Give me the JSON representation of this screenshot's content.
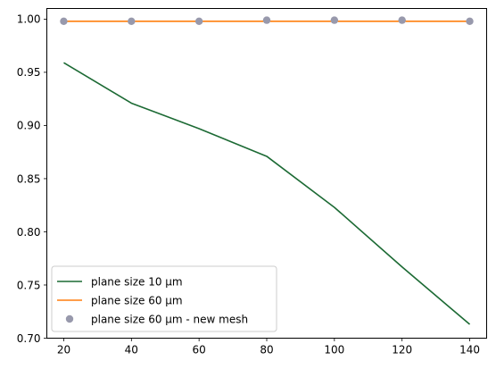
{
  "chart_data": {
    "type": "line",
    "title": "",
    "xlabel": "",
    "ylabel": "",
    "xlim": [
      15,
      145
    ],
    "ylim": [
      0.7,
      1.01
    ],
    "x_ticks": [
      20,
      40,
      60,
      80,
      100,
      120,
      140
    ],
    "y_ticks": [
      0.7,
      0.75,
      0.8,
      0.85,
      0.9,
      0.95,
      1.0
    ],
    "grid": false,
    "legend_position": "lower-left",
    "series": [
      {
        "name": "plane size 10 µm",
        "style": "line",
        "color": "#1c6a34",
        "x": [
          20,
          40,
          60,
          80,
          100,
          120,
          140
        ],
        "y": [
          0.959,
          0.921,
          0.897,
          0.871,
          0.823,
          0.767,
          0.713
        ]
      },
      {
        "name": "plane size 60 µm",
        "style": "line",
        "color": "#ff7f0e",
        "x": [
          20,
          40,
          60,
          80,
          100,
          120,
          140
        ],
        "y": [
          0.998,
          0.998,
          0.998,
          0.998,
          0.998,
          0.998,
          0.998
        ]
      },
      {
        "name": "plane size 60 µm - new mesh",
        "style": "marker",
        "color": "#9899ac",
        "x": [
          20,
          40,
          60,
          80,
          100,
          120,
          140
        ],
        "y": [
          0.998,
          0.998,
          0.998,
          0.999,
          0.999,
          0.999,
          0.998
        ]
      }
    ]
  }
}
